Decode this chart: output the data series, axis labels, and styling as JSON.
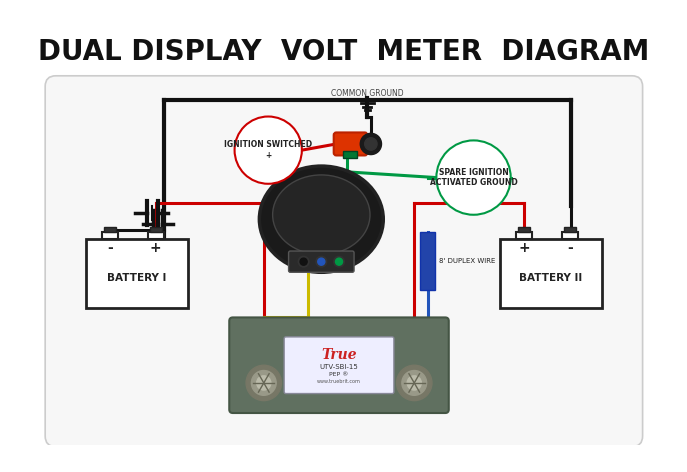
{
  "title": "DUAL DISPLAY  VOLT  METER  DIAGRAM",
  "title_fontsize": 20,
  "bg_color": "#ffffff",
  "common_ground_label": "COMMON GROUND",
  "duplex_wire_label": "8' DUPLEX WIRE",
  "ignition_label": "IGNITION SWITCHED\n+",
  "spare_label": "SPARE IGNITION\nACTIVATED GROUND",
  "battery1_label": "BATTERY I",
  "battery2_label": "BATTERY II",
  "wire_black": "#111111",
  "wire_red": "#cc0000",
  "wire_green": "#009944",
  "wire_yellow": "#ccbb00",
  "wire_blue": "#2255bb",
  "duplex_blue": "#2244aa",
  "diagram_bg": "#f7f7f7",
  "diagram_border": "#cccccc"
}
